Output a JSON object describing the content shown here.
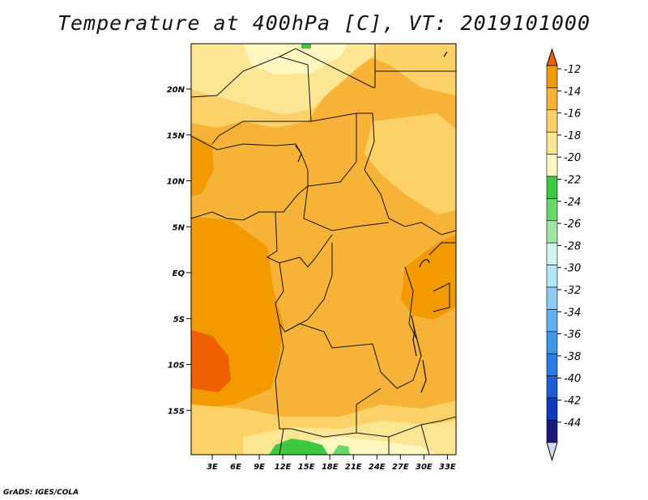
{
  "title": "Temperature at 400hPa [C], VT: 2019101000",
  "footer": "GrADS: IGES/COLA",
  "map": {
    "lat_labels": [
      {
        "label": "20N",
        "lat": 20
      },
      {
        "label": "15N",
        "lat": 15
      },
      {
        "label": "10N",
        "lat": 10
      },
      {
        "label": "5N",
        "lat": 5
      },
      {
        "label": "EQ",
        "lat": 0
      },
      {
        "label": "5S",
        "lat": -5
      },
      {
        "label": "10S",
        "lat": -10
      },
      {
        "label": "15S",
        "lat": -15
      }
    ],
    "lon_labels": [
      {
        "label": "3E",
        "lon": 3
      },
      {
        "label": "6E",
        "lon": 6
      },
      {
        "label": "9E",
        "lon": 9
      },
      {
        "label": "12E",
        "lon": 12
      },
      {
        "label": "15E",
        "lon": 15
      },
      {
        "label": "18E",
        "lon": 18
      },
      {
        "label": "21E",
        "lon": 21
      },
      {
        "label": "24E",
        "lon": 24
      },
      {
        "label": "27E",
        "lon": 27
      },
      {
        "label": "30E",
        "lon": 30
      },
      {
        "label": "33E",
        "lon": 33
      }
    ]
  },
  "colorbar": {
    "levels": [
      "-12",
      "-14",
      "-16",
      "-18",
      "-20",
      "-22",
      "-24",
      "-26",
      "-28",
      "-30",
      "-32",
      "-34",
      "-36",
      "-38",
      "-40",
      "-42",
      "-44"
    ],
    "colors": [
      "#f06000",
      "#f39a00",
      "#f7b238",
      "#fcd168",
      "#fde693",
      "#fef7bf",
      "#3cc840",
      "#68d868",
      "#a0e6a0",
      "#d2f4ee",
      "#b4e6fa",
      "#8ccbf6",
      "#62b2f2",
      "#3d98ec",
      "#2a7ce2",
      "#1d5fd2",
      "#0c3ab8",
      "#1a1a7a"
    ],
    "low_cap_color": "#d8d8f2",
    "high_cap_color": "#f06000"
  }
}
